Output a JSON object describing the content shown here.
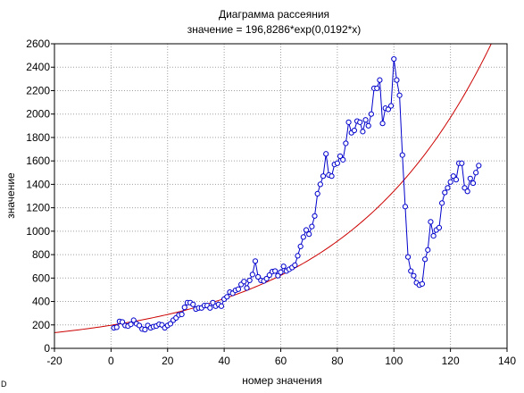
{
  "chart_data": {
    "type": "scatter",
    "title": "Диаграмма рассеяния",
    "subtitle": "значение = 196,8286*exp(0,0192*x)",
    "xlabel": "номер значения",
    "ylabel": "значение",
    "xlim": [
      -20,
      140
    ],
    "ylim": [
      0,
      2600
    ],
    "x_ticks": [
      "-20",
      "0",
      "20",
      "40",
      "60",
      "80",
      "100",
      "120",
      "140"
    ],
    "y_ticks": [
      "0",
      "200",
      "400",
      "600",
      "800",
      "1000",
      "1200",
      "1400",
      "1600",
      "1800",
      "2000",
      "2200",
      "2400",
      "2600"
    ],
    "grid": true,
    "series": [
      {
        "kind": "points-line",
        "color": "#0000cc",
        "x": [
          1,
          2,
          3,
          4,
          5,
          6,
          7,
          8,
          9,
          10,
          11,
          12,
          13,
          14,
          15,
          16,
          17,
          18,
          19,
          20,
          21,
          22,
          23,
          24,
          25,
          26,
          27,
          28,
          29,
          30,
          31,
          32,
          33,
          34,
          35,
          36,
          37,
          38,
          39,
          40,
          41,
          42,
          43,
          44,
          45,
          46,
          47,
          48,
          49,
          50,
          51,
          52,
          53,
          54,
          55,
          56,
          57,
          58,
          59,
          60,
          61,
          62,
          63,
          64,
          65,
          66,
          67,
          68,
          69,
          70,
          71,
          72,
          73,
          74,
          75,
          76,
          77,
          78,
          79,
          80,
          81,
          82,
          83,
          84,
          85,
          86,
          87,
          88,
          89,
          90,
          91,
          92,
          93,
          94,
          95,
          96,
          97,
          98,
          99,
          100,
          101,
          102,
          103,
          104,
          105,
          106,
          107,
          108,
          109,
          110,
          111,
          112,
          113,
          114,
          115,
          116,
          117,
          118,
          119,
          120,
          121,
          122,
          123,
          124,
          125,
          126,
          127,
          128,
          129,
          130
        ],
        "y": [
          175,
          180,
          230,
          225,
          195,
          190,
          205,
          240,
          210,
          195,
          165,
          160,
          195,
          175,
          185,
          190,
          205,
          200,
          175,
          195,
          210,
          240,
          260,
          285,
          290,
          350,
          390,
          390,
          375,
          335,
          345,
          345,
          365,
          365,
          345,
          390,
          360,
          375,
          360,
          420,
          440,
          480,
          470,
          495,
          505,
          545,
          570,
          515,
          580,
          630,
          745,
          610,
          580,
          575,
          595,
          625,
          655,
          660,
          620,
          650,
          700,
          660,
          675,
          690,
          710,
          790,
          870,
          950,
          1010,
          975,
          1040,
          1130,
          1320,
          1400,
          1470,
          1660,
          1480,
          1470,
          1570,
          1580,
          1640,
          1610,
          1750,
          1930,
          1840,
          1860,
          1940,
          1930,
          1850,
          1950,
          1900,
          2000,
          2220,
          2220,
          2290,
          1920,
          2050,
          2040,
          2070,
          2470,
          2290,
          2160,
          1650,
          1210,
          780,
          660,
          620,
          560,
          540,
          550,
          760,
          840,
          1080,
          960,
          1010,
          1030,
          1240,
          1330,
          1370,
          1420,
          1470,
          1440,
          1580,
          1580,
          1370,
          1340,
          1450,
          1410,
          1500,
          1560
        ]
      },
      {
        "kind": "fit-curve",
        "color": "#cc0000",
        "coef_a": 196.8286,
        "coef_b": 0.0192
      }
    ]
  },
  "side_mark": "D"
}
